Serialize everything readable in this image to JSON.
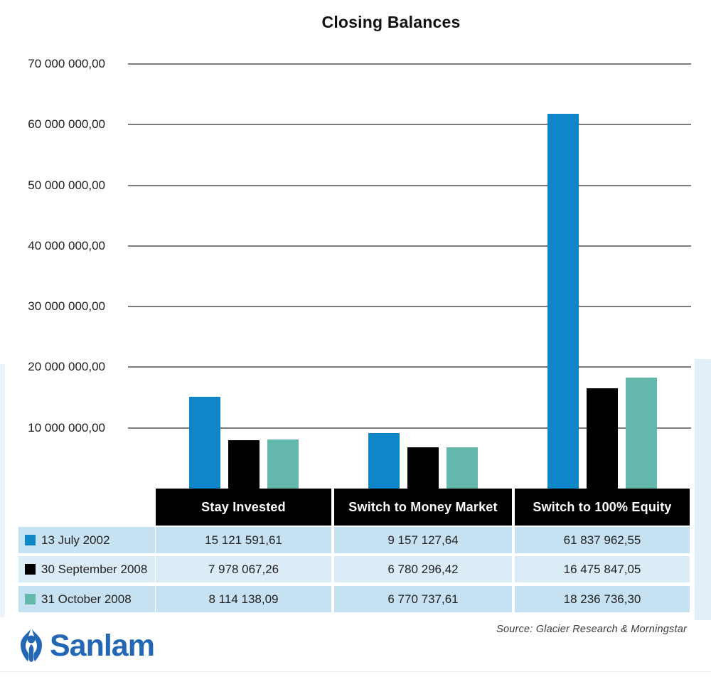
{
  "page": {
    "title": "Closing Balances",
    "source_note": "Source: Glacier Research & Morningstar",
    "brand": "Sanlam"
  },
  "colors": {
    "series_blue": "#0e86c8",
    "series_black": "#000000",
    "series_teal": "#63b7ab",
    "row_bg": "#c6e1f2",
    "row_bg_light": "#dcecf7",
    "header_bg": "#000000",
    "header_text": "#ffffff",
    "gridline": "#7d7d7d",
    "logo_blue": "#2268b4"
  },
  "chart_data": {
    "type": "bar",
    "title": "Closing Balances",
    "categories": [
      "Stay Invested",
      "Switch to Money Market",
      "Switch to 100% Equity"
    ],
    "series": [
      {
        "name": "13 July 2002",
        "color": "#0e86c8",
        "values": [
          15121591.61,
          9157127.64,
          61837962.55
        ],
        "labels": [
          "15 121 591,61",
          "9 157 127,64",
          "61 837 962,55"
        ]
      },
      {
        "name": "30 September 2008",
        "color": "#000000",
        "values": [
          7978067.26,
          6780296.42,
          16475847.05
        ],
        "labels": [
          "7 978 067,26",
          "6 780 296,42",
          "16 475 847,05"
        ]
      },
      {
        "name": "31 October 2008",
        "color": "#63b7ab",
        "values": [
          8114138.09,
          6770737.61,
          18236736.3
        ],
        "labels": [
          "8 114 138,09",
          "6 770 737,61",
          "18 236 736,30"
        ]
      }
    ],
    "ylim": [
      0,
      70000000
    ],
    "ytick_step": 10000000,
    "ytick_labels": [
      "70 000 000,00",
      "60 000 000,00",
      "50 000 000,00",
      "40 000 000,00",
      "30 000 000,00",
      "20 000 000,00",
      "10 000 000,00"
    ],
    "grid": true,
    "xlabel": "",
    "ylabel": "",
    "legend_position": "table-left-column"
  }
}
